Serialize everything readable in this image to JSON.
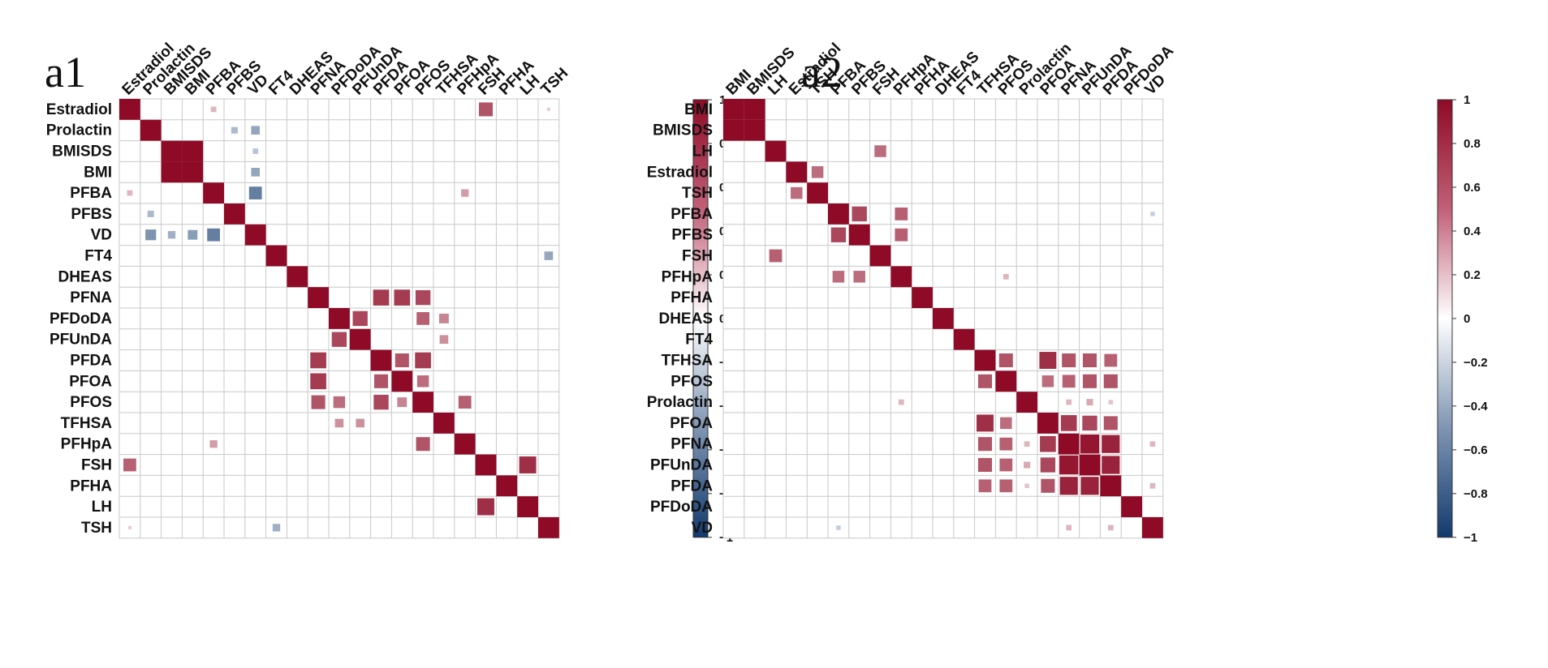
{
  "chart_data": [
    {
      "type": "heatmap",
      "panel_label": "a1",
      "labels": [
        "Estradiol",
        "Prolactin",
        "BMISDS",
        "BMI",
        "PFBA",
        "PFBS",
        "VD",
        "FT4",
        "DHEAS",
        "PFNA",
        "PFDoDA",
        "PFUnDA",
        "PFDA",
        "PFOA",
        "PFOS",
        "TFHSA",
        "PFHpA",
        "FSH",
        "PFHA",
        "LH",
        "TSH"
      ],
      "value_range": [
        -1,
        1
      ],
      "cells": [
        [
          0,
          0,
          1
        ],
        [
          0,
          4,
          0.3
        ],
        [
          0,
          17,
          0.7
        ],
        [
          0,
          20,
          0.2
        ],
        [
          1,
          1,
          1
        ],
        [
          1,
          5,
          -0.35
        ],
        [
          1,
          6,
          -0.45
        ],
        [
          2,
          2,
          1
        ],
        [
          2,
          3,
          1
        ],
        [
          2,
          6,
          -0.3
        ],
        [
          3,
          2,
          1
        ],
        [
          3,
          3,
          1
        ],
        [
          3,
          6,
          -0.45
        ],
        [
          4,
          0,
          0.3
        ],
        [
          4,
          4,
          1
        ],
        [
          4,
          6,
          -0.65
        ],
        [
          4,
          16,
          0.4
        ],
        [
          5,
          1,
          -0.35
        ],
        [
          5,
          5,
          1
        ],
        [
          6,
          1,
          -0.55
        ],
        [
          6,
          2,
          -0.4
        ],
        [
          6,
          3,
          -0.5
        ],
        [
          6,
          4,
          -0.65
        ],
        [
          6,
          6,
          1
        ],
        [
          7,
          7,
          1
        ],
        [
          7,
          20,
          -0.45
        ],
        [
          8,
          8,
          1
        ],
        [
          9,
          9,
          1
        ],
        [
          9,
          12,
          0.8
        ],
        [
          9,
          13,
          0.8
        ],
        [
          9,
          14,
          0.75
        ],
        [
          10,
          10,
          1
        ],
        [
          10,
          11,
          0.75
        ],
        [
          10,
          14,
          0.65
        ],
        [
          10,
          15,
          0.5
        ],
        [
          11,
          10,
          0.75
        ],
        [
          11,
          11,
          1
        ],
        [
          11,
          15,
          0.45
        ],
        [
          12,
          9,
          0.8
        ],
        [
          12,
          12,
          1
        ],
        [
          12,
          13,
          0.7
        ],
        [
          12,
          14,
          0.8
        ],
        [
          13,
          9,
          0.8
        ],
        [
          13,
          12,
          0.7
        ],
        [
          13,
          13,
          1
        ],
        [
          13,
          14,
          0.6
        ],
        [
          14,
          9,
          0.7
        ],
        [
          14,
          10,
          0.6
        ],
        [
          14,
          12,
          0.75
        ],
        [
          14,
          13,
          0.5
        ],
        [
          14,
          14,
          1
        ],
        [
          14,
          16,
          0.65
        ],
        [
          15,
          10,
          0.45
        ],
        [
          15,
          11,
          0.45
        ],
        [
          15,
          15,
          1
        ],
        [
          16,
          4,
          0.4
        ],
        [
          16,
          14,
          0.7
        ],
        [
          16,
          16,
          1
        ],
        [
          17,
          0,
          0.65
        ],
        [
          17,
          17,
          1
        ],
        [
          17,
          19,
          0.85
        ],
        [
          18,
          18,
          1
        ],
        [
          19,
          17,
          0.85
        ],
        [
          19,
          19,
          1
        ],
        [
          20,
          0,
          0.2
        ],
        [
          20,
          7,
          -0.4
        ],
        [
          20,
          20,
          1
        ]
      ]
    },
    {
      "type": "heatmap",
      "panel_label": "a2",
      "labels": [
        "BMI",
        "BMISDS",
        "LH",
        "Estradiol",
        "TSH",
        "PFBA",
        "PFBS",
        "FSH",
        "PFHpA",
        "PFHA",
        "DHEAS",
        "FT4",
        "TFHSA",
        "PFOS",
        "Prolactin",
        "PFOA",
        "PFNA",
        "PFUnDA",
        "PFDA",
        "PFDoDA",
        "VD"
      ],
      "value_range": [
        -1,
        1
      ],
      "cells": [
        [
          0,
          0,
          1
        ],
        [
          0,
          1,
          1
        ],
        [
          1,
          0,
          1
        ],
        [
          1,
          1,
          1
        ],
        [
          2,
          2,
          1
        ],
        [
          2,
          7,
          0.6
        ],
        [
          3,
          3,
          1
        ],
        [
          3,
          4,
          0.6
        ],
        [
          4,
          3,
          0.6
        ],
        [
          4,
          4,
          1
        ],
        [
          5,
          5,
          1
        ],
        [
          5,
          6,
          0.75
        ],
        [
          5,
          8,
          0.65
        ],
        [
          5,
          20,
          -0.25
        ],
        [
          6,
          5,
          0.75
        ],
        [
          6,
          6,
          1
        ],
        [
          6,
          8,
          0.65
        ],
        [
          7,
          2,
          0.65
        ],
        [
          7,
          7,
          1
        ],
        [
          8,
          5,
          0.6
        ],
        [
          8,
          6,
          0.6
        ],
        [
          8,
          8,
          1
        ],
        [
          8,
          13,
          0.3
        ],
        [
          9,
          9,
          1
        ],
        [
          10,
          10,
          1
        ],
        [
          11,
          11,
          1
        ],
        [
          12,
          12,
          1
        ],
        [
          12,
          13,
          0.7
        ],
        [
          12,
          15,
          0.85
        ],
        [
          12,
          16,
          0.7
        ],
        [
          12,
          17,
          0.7
        ],
        [
          12,
          18,
          0.65
        ],
        [
          13,
          12,
          0.7
        ],
        [
          13,
          13,
          1
        ],
        [
          13,
          15,
          0.6
        ],
        [
          13,
          16,
          0.65
        ],
        [
          13,
          17,
          0.7
        ],
        [
          13,
          18,
          0.7
        ],
        [
          14,
          8,
          0.3
        ],
        [
          14,
          14,
          1
        ],
        [
          14,
          16,
          0.3
        ],
        [
          14,
          17,
          0.35
        ],
        [
          14,
          18,
          0.25
        ],
        [
          15,
          12,
          0.85
        ],
        [
          15,
          13,
          0.6
        ],
        [
          15,
          15,
          1
        ],
        [
          15,
          16,
          0.8
        ],
        [
          15,
          17,
          0.75
        ],
        [
          15,
          18,
          0.7
        ],
        [
          16,
          12,
          0.7
        ],
        [
          16,
          13,
          0.65
        ],
        [
          16,
          14,
          0.3
        ],
        [
          16,
          15,
          0.8
        ],
        [
          16,
          16,
          1
        ],
        [
          16,
          17,
          0.95
        ],
        [
          16,
          18,
          0.9
        ],
        [
          16,
          20,
          0.3
        ],
        [
          17,
          12,
          0.7
        ],
        [
          17,
          13,
          0.65
        ],
        [
          17,
          14,
          0.35
        ],
        [
          17,
          15,
          0.75
        ],
        [
          17,
          16,
          0.95
        ],
        [
          17,
          17,
          1
        ],
        [
          17,
          18,
          0.9
        ],
        [
          18,
          12,
          0.65
        ],
        [
          18,
          13,
          0.65
        ],
        [
          18,
          14,
          0.25
        ],
        [
          18,
          15,
          0.7
        ],
        [
          18,
          16,
          0.9
        ],
        [
          18,
          17,
          0.9
        ],
        [
          18,
          18,
          1
        ],
        [
          18,
          20,
          0.3
        ],
        [
          19,
          19,
          1
        ],
        [
          20,
          5,
          -0.25
        ],
        [
          20,
          16,
          0.3
        ],
        [
          20,
          18,
          0.3
        ],
        [
          20,
          20,
          1
        ]
      ]
    }
  ],
  "colorbar_ticks": [
    "1",
    "0.8",
    "0.6",
    "0.4",
    "0.2",
    "0",
    "−0.2",
    "−0.4",
    "−0.6",
    "−0.8",
    "−1"
  ],
  "colors": {
    "positive": "#8e0a26",
    "neutral": "#ffffff",
    "negative": "#123a6e",
    "grid": "#c8c8c8"
  }
}
